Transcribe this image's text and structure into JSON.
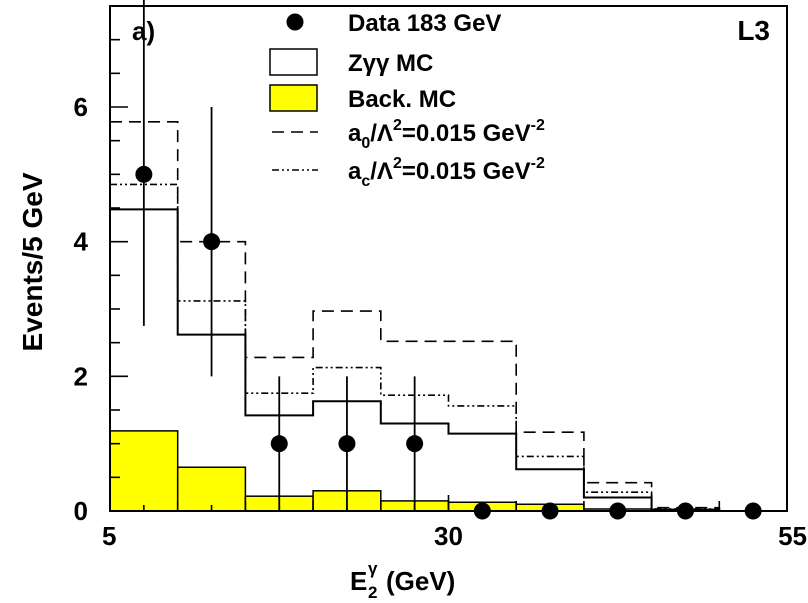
{
  "chart_data": {
    "type": "bar",
    "panel_label": "a)",
    "experiment_label": "L3",
    "xlabel_main": "E",
    "xlabel_sub": "2",
    "xlabel_sup": "γ",
    "xlabel_unit": "(GeV)",
    "ylabel": "Events/5 GeV",
    "xlim": [
      5,
      55
    ],
    "ylim": [
      0,
      7.5
    ],
    "x_tick_labels": [
      "5",
      "30",
      "55"
    ],
    "x_tick_values": [
      5,
      30,
      55
    ],
    "y_tick_labels": [
      "0",
      "2",
      "4",
      "6"
    ],
    "y_tick_values": [
      0,
      2,
      4,
      6
    ],
    "bin_edges": [
      5,
      10,
      15,
      20,
      25,
      30,
      35,
      40,
      45,
      50,
      55
    ],
    "data_points": {
      "name": "Data 183 GeV",
      "x": [
        7.5,
        12.5,
        17.5,
        22.5,
        27.5,
        32.5,
        37.5,
        42.5,
        47.5,
        52.5
      ],
      "y": [
        5,
        4,
        1,
        1,
        1,
        0,
        0,
        0,
        0,
        0
      ],
      "err_low": [
        2.25,
        2.0,
        1.0,
        1.0,
        1.0,
        0,
        0,
        0,
        0,
        0
      ],
      "err_high": [
        3.4,
        2.0,
        1.0,
        1.0,
        1.0,
        0,
        0,
        0,
        0,
        0
      ]
    },
    "series": [
      {
        "name": "Zγγ MC",
        "style": "solid",
        "values": [
          4.48,
          2.62,
          1.42,
          1.63,
          1.3,
          1.15,
          0.62,
          0.2,
          0.02,
          0.0
        ]
      },
      {
        "name": "Back. MC",
        "style": "filled",
        "values": [
          1.19,
          0.65,
          0.22,
          0.3,
          0.15,
          0.13,
          0.1,
          0.03,
          0.0,
          0.0
        ]
      },
      {
        "name": "a0/Λ2=0.015 GeV-2",
        "style": "dashed",
        "values": [
          5.78,
          4.0,
          2.28,
          2.97,
          2.52,
          2.52,
          1.17,
          0.42,
          0.05,
          0.0
        ]
      },
      {
        "name": "ac/Λ2=0.015 GeV-2",
        "style": "dashdot",
        "values": [
          4.85,
          3.12,
          1.75,
          2.13,
          1.72,
          1.56,
          0.81,
          0.28,
          0.03,
          0.0
        ]
      }
    ],
    "legend": {
      "placement": "top-center",
      "items": [
        {
          "symbol": "dot",
          "text": "Data 183 GeV"
        },
        {
          "symbol": "open-box",
          "text": "Zγγ MC"
        },
        {
          "symbol": "yellow-box",
          "text": "Back. MC"
        },
        {
          "symbol": "dashed",
          "base": "a",
          "sub1": "0",
          "mid": "/Λ",
          "sup1": "2",
          "tail": "=0.015 GeV",
          "sup2": "-2"
        },
        {
          "symbol": "dashdot",
          "base": "a",
          "sub1": "c",
          "mid": "/Λ",
          "sup1": "2",
          "tail": "=0.015 GeV",
          "sup2": "-2"
        }
      ]
    },
    "colors": {
      "background_fill": "#ffff00",
      "lines": "#000000"
    }
  }
}
